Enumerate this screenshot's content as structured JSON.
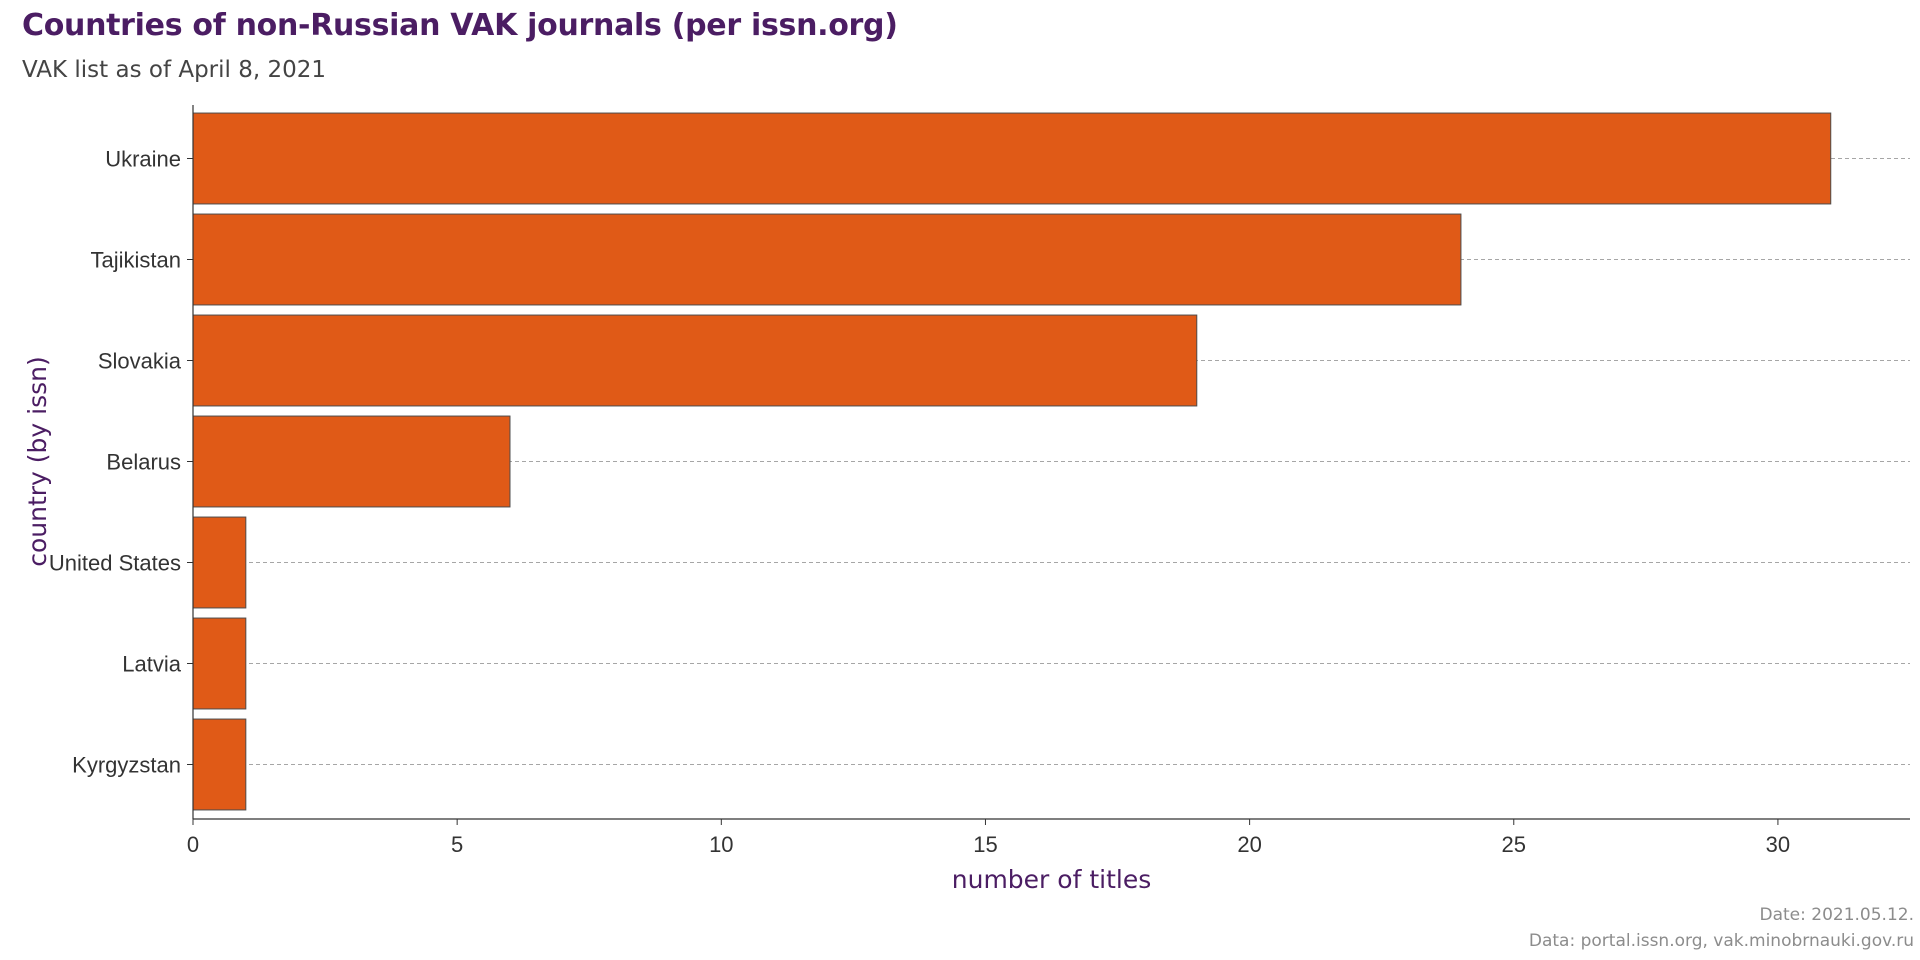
{
  "chart_data": {
    "type": "bar",
    "orientation": "horizontal",
    "title": "Countries of non-Russian VAK journals (per issn.org)",
    "subtitle": "VAK list as of April 8, 2021",
    "xlabel": "number of titles",
    "ylabel": "country (by issn)",
    "categories": [
      "Ukraine",
      "Tajikistan",
      "Slovakia",
      "Belarus",
      "United States",
      "Latvia",
      "Kyrgyzstan"
    ],
    "values": [
      31,
      24,
      19,
      6,
      1,
      1,
      1
    ],
    "xlim": [
      0,
      32.5
    ],
    "xticks": [
      0,
      5,
      10,
      15,
      20,
      25,
      30
    ],
    "grid": "horizontal dashed",
    "bar_color": "#e05a17",
    "bar_edge_color": "#4d4d4d",
    "title_color": "#4b1d63",
    "caption_date": "Date: 2021.05.12.",
    "caption_source": "Data: portal.issn.org, vak.minobrnauki.gov.ru"
  }
}
